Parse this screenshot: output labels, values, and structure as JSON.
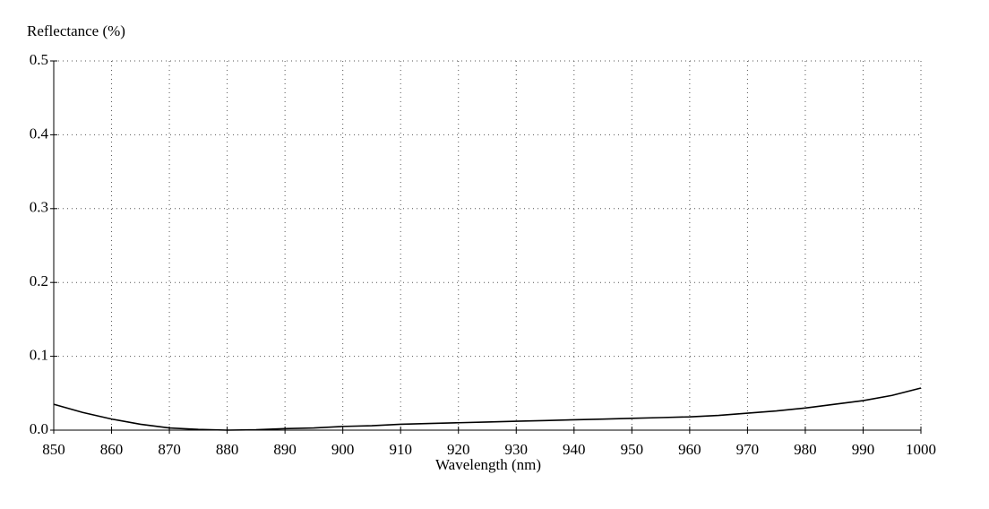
{
  "chart_data": {
    "type": "line",
    "y_label": "Reflectance (%)",
    "x_label": "Wavelength (nm)",
    "x": [
      850,
      855,
      860,
      865,
      870,
      875,
      880,
      885,
      890,
      895,
      900,
      905,
      910,
      915,
      920,
      925,
      930,
      935,
      940,
      945,
      950,
      955,
      960,
      965,
      970,
      975,
      980,
      985,
      990,
      995,
      1000
    ],
    "series": [
      {
        "color": "#000000",
        "values": [
          0.035,
          0.024,
          0.015,
          0.008,
          0.003,
          0.001,
          0.0,
          0.0005,
          0.002,
          0.003,
          0.005,
          0.006,
          0.008,
          0.009,
          0.01,
          0.011,
          0.012,
          0.013,
          0.014,
          0.015,
          0.016,
          0.017,
          0.018,
          0.02,
          0.023,
          0.026,
          0.03,
          0.035,
          0.04,
          0.047,
          0.057
        ]
      }
    ],
    "xlim": [
      850,
      1000
    ],
    "xticks": [
      850,
      860,
      870,
      880,
      890,
      900,
      910,
      920,
      930,
      940,
      950,
      960,
      970,
      980,
      990,
      1000
    ],
    "ylim": [
      0,
      0.5
    ],
    "yticks": [
      {
        "value": 0,
        "label": "0.0"
      },
      0.1,
      0.2,
      0.3,
      0.4,
      0.5
    ],
    "grid": true
  }
}
